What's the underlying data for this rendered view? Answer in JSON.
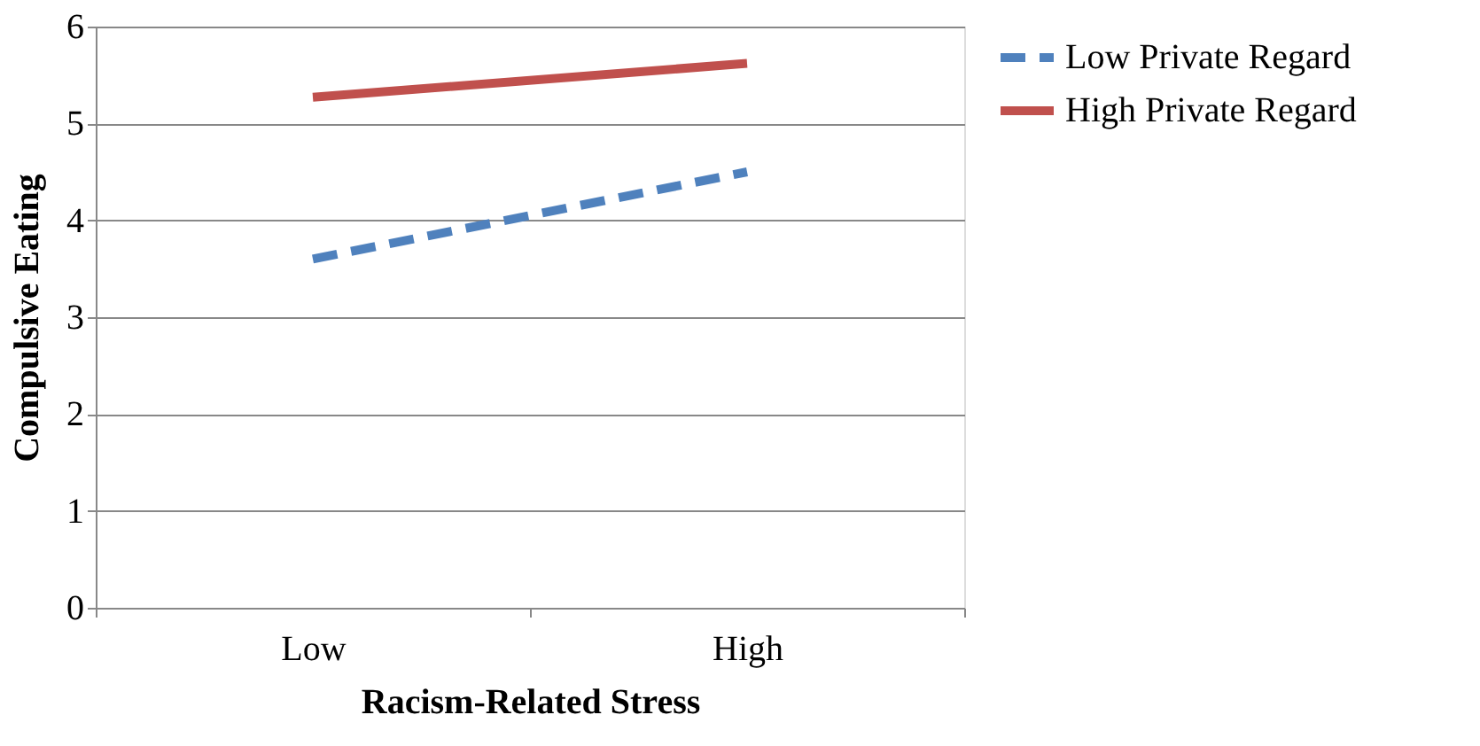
{
  "chart_data": {
    "type": "line",
    "xlabel": "Racism-Related Stress",
    "ylabel": "Compulsive Eating",
    "categories": [
      "Low",
      "High"
    ],
    "ylim": [
      0,
      6
    ],
    "yticks": [
      0,
      1,
      2,
      3,
      4,
      5,
      6
    ],
    "grid": "y",
    "legend": "right",
    "marker": "none",
    "series": [
      {
        "name": "Low Private Regard",
        "color": "#4f81bd",
        "line_style": "dashed",
        "values": [
          3.6,
          4.5
        ]
      },
      {
        "name": "High Private Regard",
        "color": "#c0504d",
        "line_style": "solid",
        "values": [
          5.27,
          5.62
        ]
      }
    ]
  }
}
